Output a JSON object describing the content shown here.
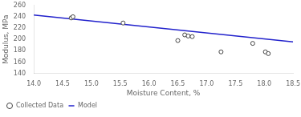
{
  "chart_data": {
    "type": "scatter",
    "xlabel": "Moisture Content, %",
    "ylabel": "Modulus, MPa",
    "series": [
      {
        "name": "Collected Data",
        "type": "scatter",
        "marker": "circle",
        "color": "#444444",
        "x": [
          14.65,
          14.68,
          15.55,
          16.5,
          16.62,
          16.68,
          16.75,
          17.25,
          17.8,
          18.02,
          18.07
        ],
        "values": [
          238,
          240,
          229,
          198,
          208,
          206,
          205,
          178,
          193,
          178,
          175
        ]
      },
      {
        "name": "Model",
        "type": "line",
        "line_style": "solid",
        "color": "#2222cc",
        "x": [
          14.0,
          18.5
        ],
        "values": [
          243,
          195.75
        ]
      }
    ],
    "xlim": [
      14.0,
      18.5
    ],
    "ylim": [
      140,
      260
    ],
    "xticks": [
      {
        "value": 14.0,
        "label": "14.0"
      },
      {
        "value": 14.5,
        "label": "14.5"
      },
      {
        "value": 15.0,
        "label": "15.0"
      },
      {
        "value": 15.5,
        "label": "15.5"
      },
      {
        "value": 16.0,
        "label": "16.0"
      },
      {
        "value": 16.5,
        "label": "16.5"
      },
      {
        "value": 17.0,
        "label": "17.0"
      },
      {
        "value": 17.5,
        "label": "17.5"
      },
      {
        "value": 18.0,
        "label": "18.0"
      },
      {
        "value": 18.5,
        "label": "18.5"
      }
    ],
    "yticks": [
      140,
      160,
      180,
      200,
      220,
      240,
      260
    ],
    "legend": "lower left",
    "grid": false
  }
}
